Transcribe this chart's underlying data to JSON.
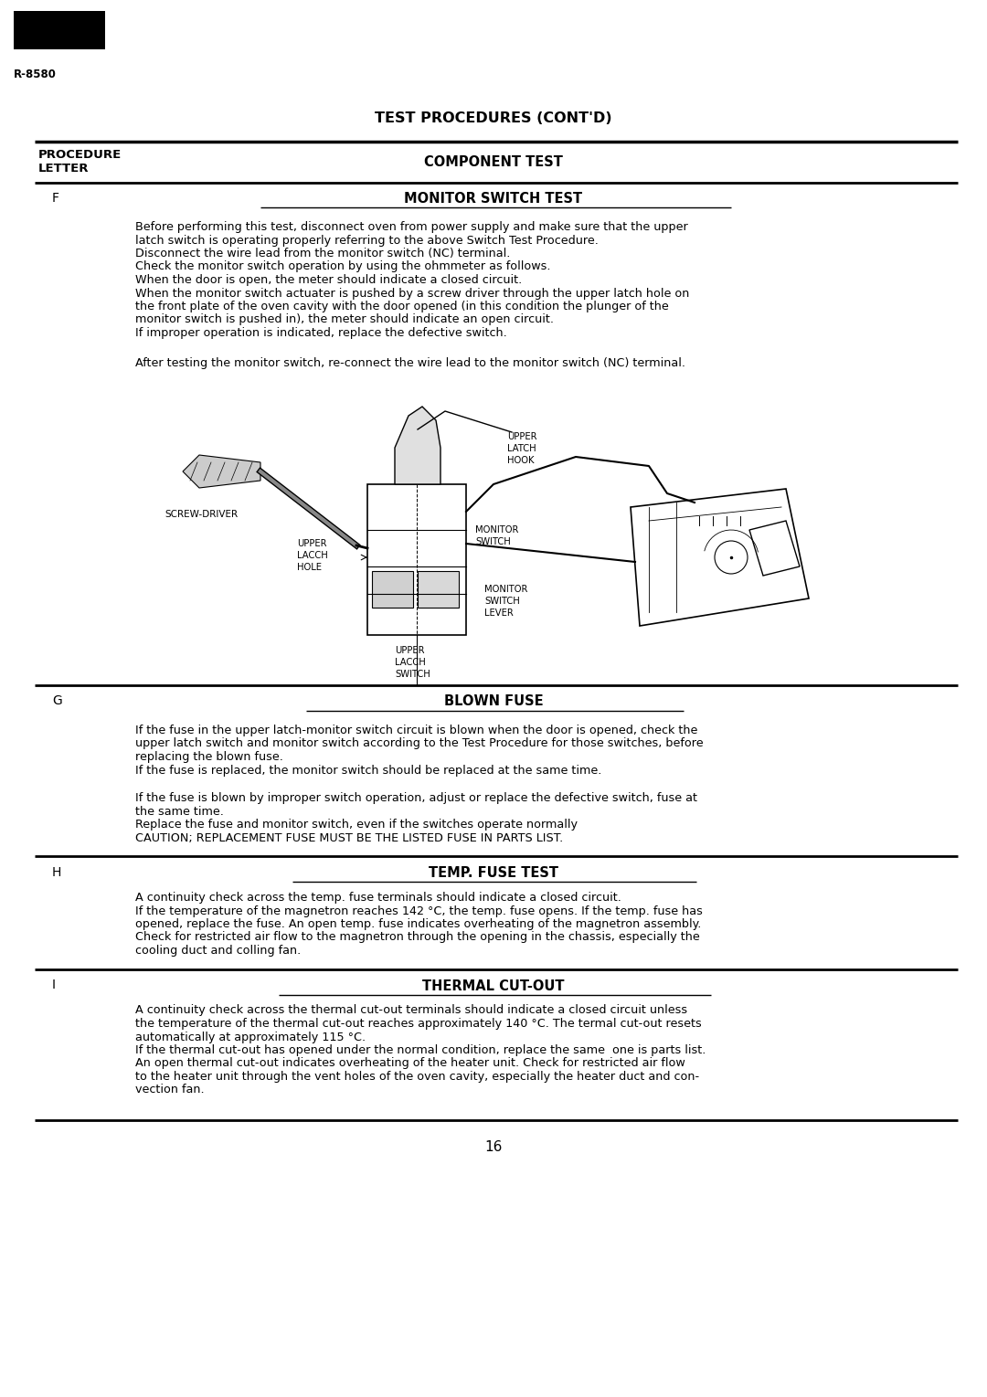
{
  "title": "TEST PROCEDURES (CONT'D)",
  "model": "R-8580",
  "page_number": "16",
  "bg": "#ffffff",
  "para_f1_lines": [
    "Before performing this test, disconnect oven from power supply and make sure that the upper",
    "latch switch is operating properly referring to the above Switch Test Procedure.",
    "Disconnect the wire lead from the monitor switch (NC) terminal.",
    "Check the monitor switch operation by using the ohmmeter as follows.",
    "When the door is open, the meter should indicate a closed circuit.",
    "When the monitor switch actuater is pushed by a screw driver through the upper latch hole on",
    "the front plate of the oven cavity with the door opened (in this condition the plunger of the",
    "monitor switch is pushed in), the meter should indicate an open circuit.",
    "If improper operation is indicated, replace the defective switch."
  ],
  "para_f2": "After testing the monitor switch, re-connect the wire lead to the monitor switch (NC) terminal.",
  "para_g1_lines": [
    "If the fuse in the upper latch-monitor switch circuit is blown when the door is opened, check the",
    "upper latch switch and monitor switch according to the Test Procedure for those switches, before",
    "replacing the blown fuse.",
    "If the fuse is replaced, the monitor switch should be replaced at the same time."
  ],
  "para_g2_lines": [
    "If the fuse is blown by improper switch operation, adjust or replace the defective switch, fuse at",
    "the same time.",
    "Replace the fuse and monitor switch, even if the switches operate normally",
    "CAUTION; REPLACEMENT FUSE MUST BE THE LISTED FUSE IN PARTS LIST."
  ],
  "para_h_lines": [
    "A continuity check across the temp. fuse terminals should indicate a closed circuit.",
    "If the temperature of the magnetron reaches 142 °C, the temp. fuse opens. If the temp. fuse has",
    "opened, replace the fuse. An open temp. fuse indicates overheating of the magnetron assembly.",
    "Check for restricted air flow to the magnetron through the opening in the chassis, especially the",
    "cooling duct and colling fan."
  ],
  "para_i_lines": [
    "A continuity check across the thermal cut-out terminals should indicate a closed circuit unless",
    "the temperature of the thermal cut-out reaches approximately 140 °C. The termal cut-out resets",
    "automatically at approximately 115 °C.",
    "If the thermal cut-out has opened under the normal condition, replace the same  one is parts list.",
    "An open thermal cut-out indicates overheating of the heater unit. Check for restricted air flow",
    "to the heater unit through the vent holes of the oven cavity, especially the heater duct and con-",
    "vection fan."
  ]
}
